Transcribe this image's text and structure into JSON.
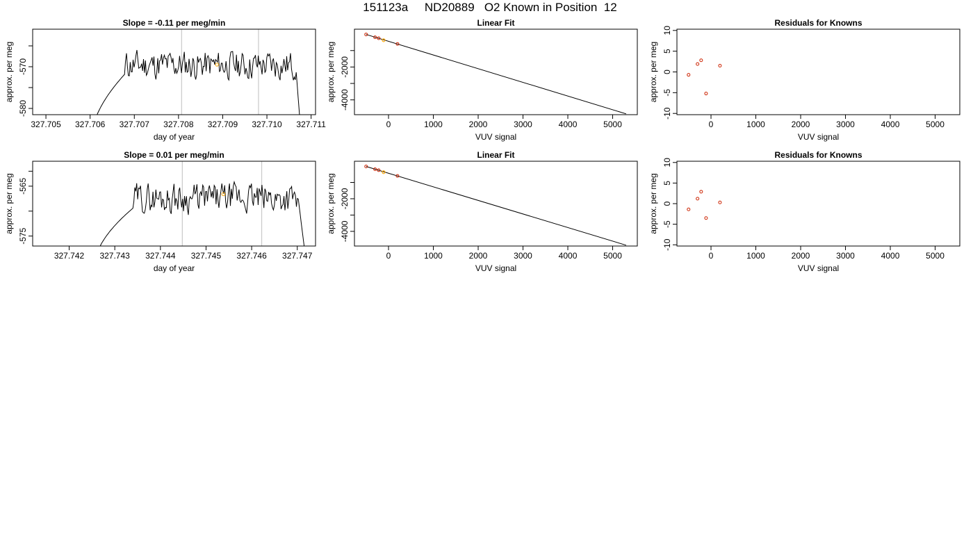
{
  "page_title": "151123a     ND20889   O2 Known in Position  12",
  "chart_data": [
    {
      "id": "ts1",
      "type": "line",
      "title": "Slope =  -0.11  per meg/min",
      "xlabel": "day of year",
      "ylabel": "approx. per meg",
      "xlim": [
        327.7047,
        327.7111
      ],
      "ylim": [
        -581.5,
        -561
      ],
      "xticks": [
        "327.705",
        "327.706",
        "327.707",
        "327.708",
        "327.709",
        "327.710",
        "327.711"
      ],
      "xtick_values": [
        327.705,
        327.706,
        327.707,
        327.708,
        327.709,
        327.71,
        327.711
      ],
      "yticks": [
        "-580",
        "-570"
      ],
      "ytick_values": [
        -580,
        -570
      ],
      "ytick_minor_values": [
        -575,
        -565
      ],
      "vlines": [
        327.70807,
        327.70981
      ],
      "marker": {
        "x": 327.70887,
        "y": -569.5,
        "color": "#ffa500"
      },
      "signal": {
        "x_start": 327.70605,
        "x_end": 327.71077,
        "plateau": -569.6,
        "rise_end": 327.7068,
        "fall_start": 327.71065,
        "edge_low": -586,
        "noise": 1.4,
        "seed": 11
      }
    },
    {
      "id": "lf1",
      "type": "line",
      "title": "Linear Fit",
      "xlabel": "VUV signal",
      "ylabel": "approx. per meg",
      "xlim": [
        -760,
        5550
      ],
      "ylim": [
        -4900,
        300
      ],
      "xticks": [
        "0",
        "1000",
        "2000",
        "3000",
        "4000",
        "5000"
      ],
      "xtick_values": [
        0,
        1000,
        2000,
        3000,
        4000,
        5000
      ],
      "yticks": [
        "-4000",
        "-2000"
      ],
      "ytick_values": [
        -4000,
        -2000
      ],
      "ytick_minor_values": [
        -3000,
        -1000
      ],
      "fit_line": {
        "x": [
          -500,
          5300
        ],
        "y": [
          -20,
          -4850
        ]
      },
      "points": [
        {
          "x": -500,
          "y": -20
        },
        {
          "x": -300,
          "y": -190
        },
        {
          "x": -220,
          "y": -250
        },
        {
          "x": 200,
          "y": -600
        }
      ],
      "highlight": {
        "x": -110,
        "y": -370,
        "color": "#ffa500"
      }
    },
    {
      "id": "rs1",
      "type": "scatter",
      "title": "Residuals for Knowns",
      "xlabel": "VUV signal",
      "ylabel": "approx. per meg",
      "xlim": [
        -760,
        5550
      ],
      "ylim": [
        -10.3,
        10.3
      ],
      "xticks": [
        "0",
        "1000",
        "2000",
        "3000",
        "4000",
        "5000"
      ],
      "xtick_values": [
        0,
        1000,
        2000,
        3000,
        4000,
        5000
      ],
      "yticks": [
        "-10",
        "-5",
        "0",
        "5",
        "10"
      ],
      "ytick_values": [
        -10,
        -5,
        0,
        5,
        10
      ],
      "points": [
        {
          "x": -500,
          "y": -0.7
        },
        {
          "x": -300,
          "y": 1.9
        },
        {
          "x": -220,
          "y": 2.8
        },
        {
          "x": -110,
          "y": -5.2
        },
        {
          "x": 200,
          "y": 1.5
        }
      ]
    },
    {
      "id": "ts2",
      "type": "line",
      "title": "Slope =  0.01  per meg/min",
      "xlabel": "day of year",
      "ylabel": "approx. per meg",
      "xlim": [
        327.7412,
        327.7474
      ],
      "ylim": [
        -577,
        -560
      ],
      "xticks": [
        "327.742",
        "327.743",
        "327.744",
        "327.745",
        "327.746",
        "327.747"
      ],
      "xtick_values": [
        327.742,
        327.743,
        327.744,
        327.745,
        327.746,
        327.747
      ],
      "yticks": [
        "-565",
        "-575"
      ],
      "ytick_values": [
        -565,
        -575
      ],
      "ytick_minor_values": [
        -570,
        -562
      ],
      "vlines": [
        327.74448,
        327.74622
      ],
      "marker": {
        "x": 327.74538,
        "y": -566.6,
        "color": "#ffa500"
      },
      "signal": {
        "x_start": 327.74258,
        "x_end": 327.74719,
        "plateau": -567.4,
        "rise_end": 327.7434,
        "fall_start": 327.74702,
        "edge_low": -580,
        "noise": 1.2,
        "seed": 29
      }
    },
    {
      "id": "lf2",
      "type": "line",
      "title": "Linear Fit",
      "xlabel": "VUV signal",
      "ylabel": "approx. per meg",
      "xlim": [
        -760,
        5550
      ],
      "ylim": [
        -4900,
        300
      ],
      "xticks": [
        "0",
        "1000",
        "2000",
        "3000",
        "4000",
        "5000"
      ],
      "xtick_values": [
        0,
        1000,
        2000,
        3000,
        4000,
        5000
      ],
      "yticks": [
        "-4000",
        "-2000"
      ],
      "ytick_values": [
        -4000,
        -2000
      ],
      "ytick_minor_values": [
        -3000,
        -1000
      ],
      "fit_line": {
        "x": [
          -500,
          5300
        ],
        "y": [
          -20,
          -4850
        ]
      },
      "points": [
        {
          "x": -500,
          "y": -20
        },
        {
          "x": -300,
          "y": -190
        },
        {
          "x": -220,
          "y": -250
        },
        {
          "x": 200,
          "y": -600
        }
      ],
      "highlight": {
        "x": -110,
        "y": -370,
        "color": "#ffa500"
      }
    },
    {
      "id": "rs2",
      "type": "scatter",
      "title": "Residuals for Knowns",
      "xlabel": "VUV signal",
      "ylabel": "approx. per meg",
      "xlim": [
        -760,
        5550
      ],
      "ylim": [
        -10.3,
        10.3
      ],
      "xticks": [
        "0",
        "1000",
        "2000",
        "3000",
        "4000",
        "5000"
      ],
      "xtick_values": [
        0,
        1000,
        2000,
        3000,
        4000,
        5000
      ],
      "yticks": [
        "-10",
        "-5",
        "0",
        "5",
        "10"
      ],
      "ytick_values": [
        -10,
        -5,
        0,
        5,
        10
      ],
      "points": [
        {
          "x": -500,
          "y": -1.4
        },
        {
          "x": -300,
          "y": 1.2
        },
        {
          "x": -220,
          "y": 2.9
        },
        {
          "x": -110,
          "y": -3.5
        },
        {
          "x": 200,
          "y": 0.3
        }
      ]
    }
  ],
  "colors": {
    "series": "#000000",
    "points": "#cc2200",
    "highlight": "#ffa500",
    "vline": "#c8c8c8"
  }
}
